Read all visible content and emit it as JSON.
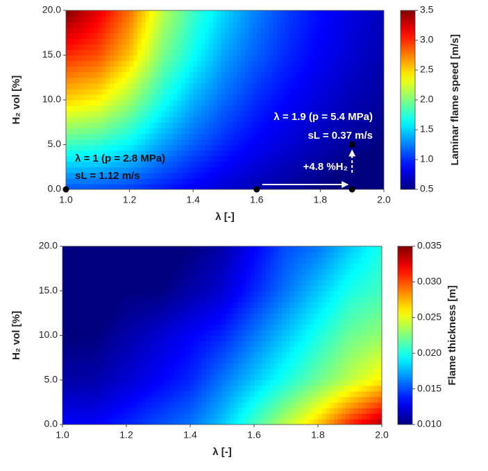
{
  "chart_data": [
    {
      "type": "heatmap",
      "colormap": "jet",
      "x_label": "λ [-]",
      "y_label": "H₂ vol  [%]",
      "colorbar_label": "Laminar flame speed [m/s]",
      "x": [
        1.0,
        1.1,
        1.2,
        1.3,
        1.4,
        1.5,
        1.6,
        1.7,
        1.8,
        1.9,
        2.0
      ],
      "y": [
        0,
        5,
        10,
        15,
        20
      ],
      "z": [
        [
          1.12,
          1.1,
          1.05,
          0.95,
          0.84,
          0.74,
          0.65,
          0.57,
          0.5,
          0.37,
          0.33
        ],
        [
          1.8,
          1.75,
          1.6,
          1.35,
          1.15,
          0.98,
          0.85,
          0.75,
          0.66,
          0.58,
          0.5
        ],
        [
          2.5,
          2.4,
          2.1,
          1.7,
          1.4,
          1.18,
          1.0,
          0.87,
          0.76,
          0.66,
          0.58
        ],
        [
          3.0,
          2.9,
          2.55,
          2.0,
          1.65,
          1.35,
          1.15,
          0.98,
          0.85,
          0.74,
          0.64
        ],
        [
          3.5,
          3.2,
          2.8,
          2.2,
          1.8,
          1.5,
          1.25,
          1.05,
          0.9,
          0.78,
          0.68
        ]
      ],
      "xlim": [
        1.0,
        2.0
      ],
      "xticks": [
        {
          "value": 1.0,
          "label": "1.0"
        },
        {
          "value": 1.2,
          "label": "1.2"
        },
        {
          "value": 1.4,
          "label": "1.4"
        },
        {
          "value": 1.6,
          "label": "1.6"
        },
        {
          "value": 1.8,
          "label": "1.8"
        },
        {
          "value": 2.0,
          "label": "2.0"
        }
      ],
      "ylim": [
        0,
        20
      ],
      "yticks": [
        {
          "value": 0,
          "label": "0.0"
        },
        {
          "value": 5,
          "label": "5.0"
        },
        {
          "value": 10,
          "label": "10.0"
        },
        {
          "value": 15,
          "label": "15.0"
        },
        {
          "value": 20,
          "label": "20.0"
        }
      ],
      "zlim": [
        0.5,
        3.5
      ],
      "zticks": [
        {
          "value": 0.5,
          "label": "0.5"
        },
        {
          "value": 1.0,
          "label": "1.0"
        },
        {
          "value": 1.5,
          "label": "1.5"
        },
        {
          "value": 2.0,
          "label": "2.0"
        },
        {
          "value": 2.5,
          "label": "2.5"
        },
        {
          "value": 3.0,
          "label": "3.0"
        },
        {
          "value": 3.5,
          "label": "3.5"
        }
      ],
      "points": {
        "x": [
          1.0,
          1.6,
          1.9,
          1.9
        ],
        "y": [
          0,
          0,
          0,
          5
        ],
        "color": "#000000"
      },
      "annotations": [
        "λ = 1 (p = 2.8 MPa)",
        "sL = 1.12 m/s",
        "λ = 1.9 (p = 5.4 MPa)",
        "sL = 0.37 m/s",
        "+4.8 %H₂"
      ]
    },
    {
      "type": "heatmap",
      "colormap": "jet",
      "x_label": "λ [-]",
      "y_label": "H₂ vol  [%]",
      "colorbar_label": "Flame thickness [m]",
      "x": [
        1.0,
        1.1,
        1.2,
        1.3,
        1.4,
        1.5,
        1.6,
        1.7,
        1.8,
        1.9,
        2.0
      ],
      "y": [
        0,
        5,
        10,
        15,
        20
      ],
      "z": [
        [
          0.013,
          0.013,
          0.014,
          0.015,
          0.016,
          0.018,
          0.021,
          0.024,
          0.027,
          0.031,
          0.034
        ],
        [
          0.011,
          0.011,
          0.012,
          0.013,
          0.014,
          0.016,
          0.018,
          0.02,
          0.022,
          0.024,
          0.026
        ],
        [
          0.01,
          0.01,
          0.011,
          0.012,
          0.013,
          0.014,
          0.016,
          0.018,
          0.02,
          0.022,
          0.023
        ],
        [
          0.009,
          0.009,
          0.01,
          0.01,
          0.011,
          0.012,
          0.014,
          0.016,
          0.018,
          0.02,
          0.021
        ],
        [
          0.009,
          0.009,
          0.009,
          0.009,
          0.01,
          0.011,
          0.013,
          0.015,
          0.016,
          0.018,
          0.02
        ]
      ],
      "xlim": [
        1.0,
        2.0
      ],
      "xticks": [
        {
          "value": 1.0,
          "label": "1.0"
        },
        {
          "value": 1.2,
          "label": "1.2"
        },
        {
          "value": 1.4,
          "label": "1.4"
        },
        {
          "value": 1.6,
          "label": "1.6"
        },
        {
          "value": 1.8,
          "label": "1.8"
        },
        {
          "value": 2.0,
          "label": "2.0"
        }
      ],
      "ylim": [
        0,
        20
      ],
      "yticks": [
        {
          "value": 0,
          "label": "0.0"
        },
        {
          "value": 5,
          "label": "5.0"
        },
        {
          "value": 10,
          "label": "10.0"
        },
        {
          "value": 15,
          "label": "15.0"
        },
        {
          "value": 20,
          "label": "20.0"
        }
      ],
      "zlim": [
        0.01,
        0.035
      ],
      "zticks": [
        {
          "value": 0.01,
          "label": "0.010"
        },
        {
          "value": 0.015,
          "label": "0.015"
        },
        {
          "value": 0.02,
          "label": "0.020"
        },
        {
          "value": 0.025,
          "label": "0.025"
        },
        {
          "value": 0.03,
          "label": "0.030"
        },
        {
          "value": 0.035,
          "label": "0.035"
        }
      ]
    }
  ]
}
